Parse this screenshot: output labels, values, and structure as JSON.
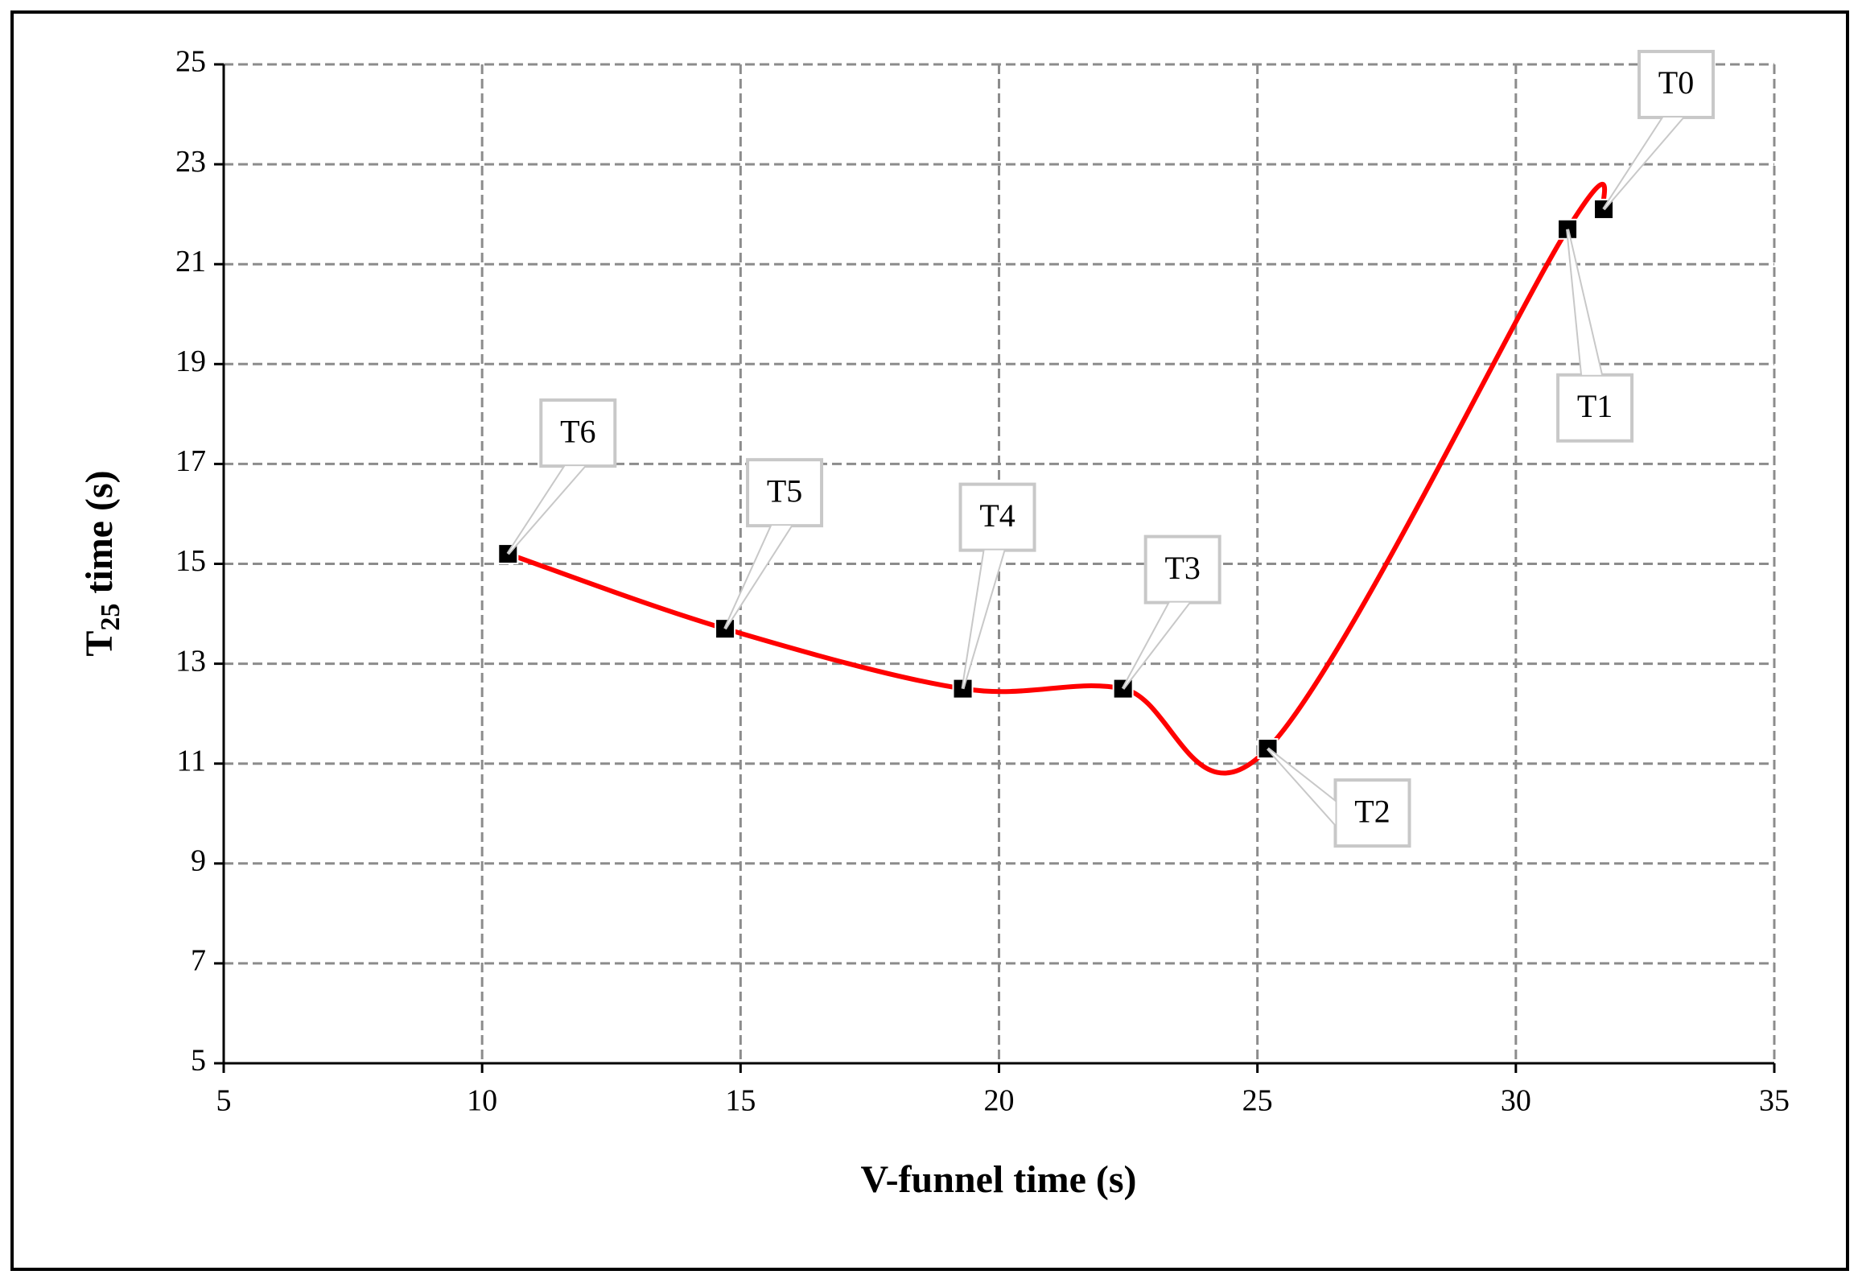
{
  "chart_data": {
    "type": "scatter",
    "x_label": "V-funnel time (s)",
    "y_label": [
      "T",
      "25",
      " time (s)"
    ],
    "x": [
      10.5,
      14.7,
      19.3,
      22.4,
      25.2,
      31.0,
      31.7
    ],
    "series": [
      {
        "color": "#ff0000",
        "values": [
          15.2,
          13.7,
          12.5,
          12.5,
          11.3,
          21.7,
          22.1
        ]
      }
    ],
    "point_labels": [
      "T6",
      "T5",
      "T4",
      "T3",
      "T2",
      "T1",
      "T0"
    ],
    "xlim": [
      5,
      35
    ],
    "xticks": [
      5,
      10,
      15,
      20,
      25,
      30,
      35
    ],
    "ylim": [
      5,
      25
    ],
    "yticks": [
      5,
      7,
      9,
      11,
      13,
      15,
      17,
      19,
      21,
      23,
      25
    ],
    "grid": true,
    "smooth": true
  }
}
